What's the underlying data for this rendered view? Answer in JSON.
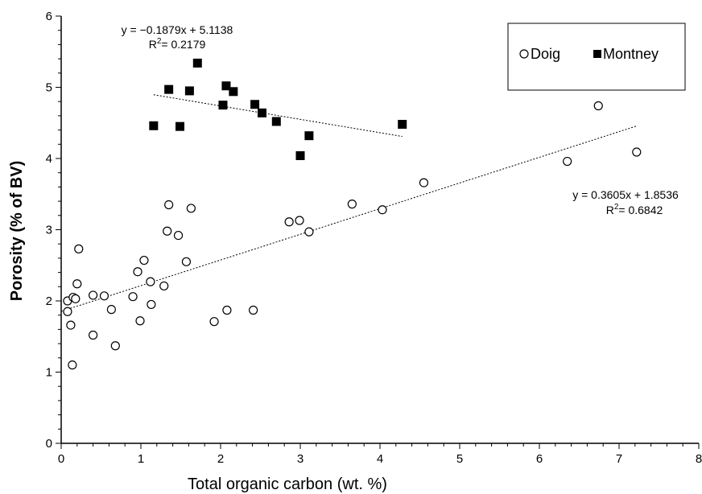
{
  "chart_data": {
    "type": "scatter",
    "title": "",
    "xlabel": "Total organic carbon (wt. %)",
    "ylabel": "Porosity (% of BV)",
    "xlim": [
      0,
      8
    ],
    "ylim": [
      0,
      6
    ],
    "x_ticks": [
      "0",
      "1",
      "2",
      "3",
      "4",
      "5",
      "6",
      "7",
      "8"
    ],
    "y_ticks": [
      "0",
      "1",
      "2",
      "3",
      "4",
      "5",
      "6"
    ],
    "grid": false,
    "legend_position": "top-right",
    "series": [
      {
        "name": "Doig",
        "marker": "open-circle",
        "color": "#000000",
        "points": [
          [
            0.08,
            1.85
          ],
          [
            0.08,
            2.0
          ],
          [
            0.12,
            1.66
          ],
          [
            0.14,
            1.1
          ],
          [
            0.15,
            2.05
          ],
          [
            0.18,
            2.03
          ],
          [
            0.2,
            2.24
          ],
          [
            0.22,
            2.73
          ],
          [
            0.4,
            2.08
          ],
          [
            0.4,
            1.52
          ],
          [
            0.54,
            2.07
          ],
          [
            0.63,
            1.88
          ],
          [
            0.68,
            1.37
          ],
          [
            0.9,
            2.06
          ],
          [
            0.96,
            2.41
          ],
          [
            0.99,
            1.72
          ],
          [
            1.04,
            2.57
          ],
          [
            1.12,
            2.27
          ],
          [
            1.13,
            1.95
          ],
          [
            1.29,
            2.21
          ],
          [
            1.33,
            2.98
          ],
          [
            1.35,
            3.35
          ],
          [
            1.47,
            2.92
          ],
          [
            1.57,
            2.55
          ],
          [
            1.63,
            3.3
          ],
          [
            1.92,
            1.71
          ],
          [
            2.08,
            1.87
          ],
          [
            2.41,
            1.87
          ],
          [
            2.86,
            3.11
          ],
          [
            2.99,
            3.13
          ],
          [
            3.11,
            2.97
          ],
          [
            3.65,
            3.36
          ],
          [
            4.03,
            3.28
          ],
          [
            4.55,
            3.66
          ],
          [
            6.35,
            3.96
          ],
          [
            6.74,
            4.74
          ],
          [
            7.22,
            4.09
          ]
        ],
        "trendline": {
          "x_range": [
            0.0,
            7.22
          ],
          "slope": 0.3605,
          "intercept": 1.8536,
          "equation": "y = 0.3605x + 1.8536",
          "r2_prefix": "R",
          "r2_sup": "2",
          "r2_value": "= 0.6842"
        }
      },
      {
        "name": "Montney",
        "marker": "filled-square",
        "color": "#000000",
        "points": [
          [
            1.16,
            4.46
          ],
          [
            1.35,
            4.97
          ],
          [
            1.49,
            4.45
          ],
          [
            1.61,
            4.95
          ],
          [
            1.71,
            5.34
          ],
          [
            2.03,
            4.75
          ],
          [
            2.07,
            5.02
          ],
          [
            2.16,
            4.94
          ],
          [
            2.43,
            4.76
          ],
          [
            2.52,
            4.64
          ],
          [
            2.7,
            4.52
          ],
          [
            3.0,
            4.04
          ],
          [
            3.11,
            4.32
          ],
          [
            4.28,
            4.48
          ]
        ],
        "trendline": {
          "x_range": [
            1.16,
            4.28
          ],
          "slope": -0.1879,
          "intercept": 5.1138,
          "equation": "y = −0.1879x + 5.1138",
          "r2_prefix": "R",
          "r2_sup": "2",
          "r2_value": "= 0.2179"
        }
      }
    ]
  }
}
